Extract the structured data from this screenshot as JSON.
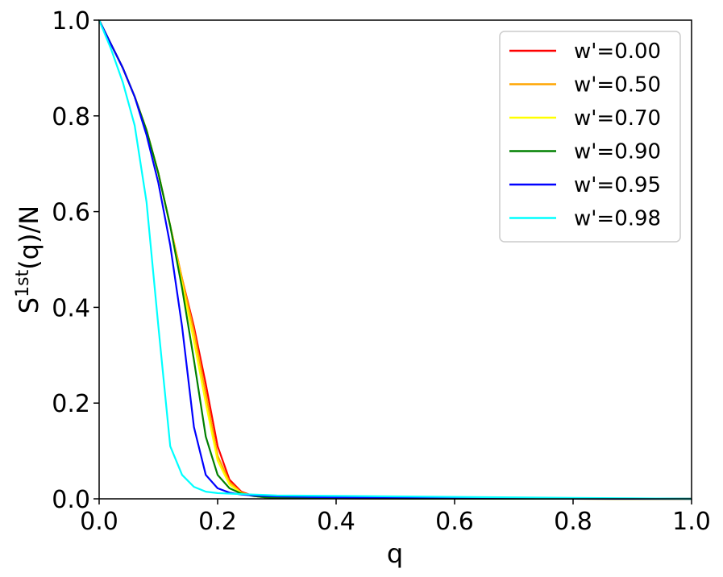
{
  "chart_data": {
    "type": "line",
    "title": "",
    "xlabel": "q",
    "ylabel_base": "S",
    "ylabel_sup": "1st",
    "ylabel_rest": "(q)/N",
    "xlim": [
      0,
      1
    ],
    "ylim": [
      0,
      1
    ],
    "xticks": [
      "0.0",
      "0.2",
      "0.4",
      "0.6",
      "0.8",
      "1.0"
    ],
    "yticks": [
      "0.0",
      "0.2",
      "0.4",
      "0.6",
      "0.8",
      "1.0"
    ],
    "grid": false,
    "legend_position": "top-right",
    "x": [
      0,
      0.02,
      0.04,
      0.06,
      0.08,
      0.1,
      0.12,
      0.14,
      0.16,
      0.18,
      0.2,
      0.22,
      0.24,
      0.26,
      0.28,
      0.3,
      0.4,
      0.5,
      0.6,
      0.7,
      0.8,
      0.9,
      1.0
    ],
    "series": [
      {
        "name": "w'=0.00",
        "color": "#ff0000",
        "values": [
          1.0,
          0.95,
          0.9,
          0.84,
          0.77,
          0.68,
          0.57,
          0.46,
          0.36,
          0.24,
          0.11,
          0.04,
          0.015,
          0.006,
          0.003,
          0.002,
          0.001,
          0.0005,
          0.0003,
          0.0002,
          0.0001,
          0.0,
          0.0
        ]
      },
      {
        "name": "w'=0.50",
        "color": "#ffa500",
        "values": [
          1.0,
          0.95,
          0.9,
          0.84,
          0.77,
          0.68,
          0.57,
          0.46,
          0.35,
          0.22,
          0.09,
          0.035,
          0.013,
          0.006,
          0.003,
          0.002,
          0.001,
          0.0005,
          0.0003,
          0.0002,
          0.0001,
          0.0,
          0.0
        ]
      },
      {
        "name": "w'=0.70",
        "color": "#ffff00",
        "values": [
          1.0,
          0.95,
          0.9,
          0.84,
          0.77,
          0.68,
          0.57,
          0.45,
          0.33,
          0.2,
          0.08,
          0.03,
          0.012,
          0.006,
          0.003,
          0.002,
          0.001,
          0.0005,
          0.0003,
          0.0002,
          0.0001,
          0.0,
          0.0
        ]
      },
      {
        "name": "w'=0.90",
        "color": "#008000",
        "values": [
          1.0,
          0.95,
          0.9,
          0.84,
          0.77,
          0.68,
          0.57,
          0.44,
          0.29,
          0.13,
          0.05,
          0.022,
          0.011,
          0.006,
          0.003,
          0.002,
          0.001,
          0.0005,
          0.0003,
          0.0002,
          0.0001,
          0.0,
          0.0
        ]
      },
      {
        "name": "w'=0.95",
        "color": "#0000ff",
        "values": [
          1.0,
          0.95,
          0.9,
          0.84,
          0.76,
          0.66,
          0.53,
          0.36,
          0.15,
          0.05,
          0.022,
          0.013,
          0.009,
          0.007,
          0.006,
          0.005,
          0.003,
          0.002,
          0.0015,
          0.001,
          0.0005,
          0.0002,
          0.0
        ]
      },
      {
        "name": "w'=0.98",
        "color": "#00ffff",
        "values": [
          1.0,
          0.94,
          0.87,
          0.78,
          0.62,
          0.36,
          0.11,
          0.05,
          0.025,
          0.015,
          0.012,
          0.011,
          0.01,
          0.009,
          0.008,
          0.007,
          0.006,
          0.005,
          0.004,
          0.003,
          0.002,
          0.001,
          0.0
        ]
      }
    ]
  }
}
